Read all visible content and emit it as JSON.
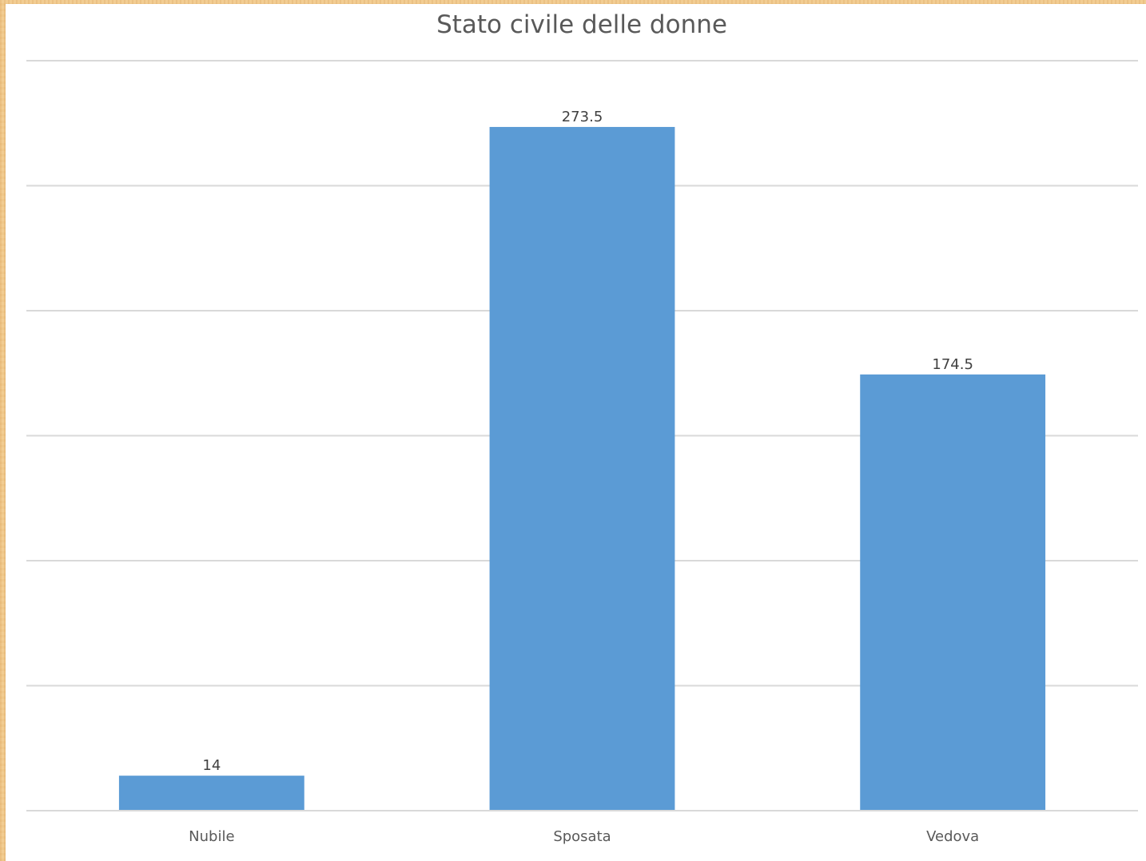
{
  "chart_data": {
    "type": "bar",
    "title": "Stato civile delle donne",
    "xlabel": "",
    "ylabel": "",
    "categories": [
      "Nubile",
      "Sposata",
      "Vedova"
    ],
    "values": [
      14,
      273.5,
      174.5
    ],
    "data_labels": [
      "14",
      "273.5",
      "174.5"
    ],
    "ylim": [
      0,
      300
    ],
    "y_gridline_step": 50,
    "grid": true,
    "y_axis_labels_shown": false,
    "legend": "none",
    "bar_color": "#5b9bd5",
    "gridline_color": "#d9d9d9"
  }
}
